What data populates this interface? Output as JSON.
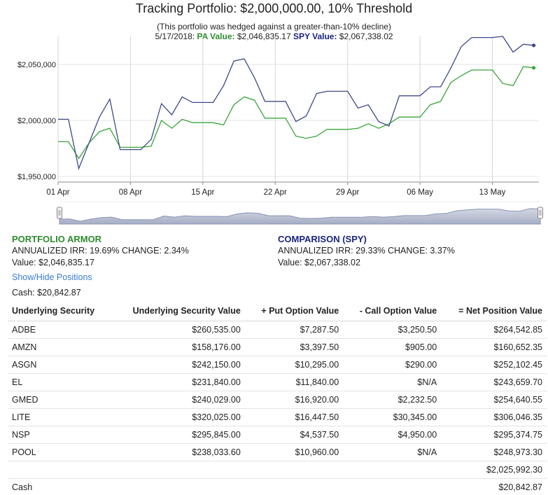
{
  "header": {
    "title": "Tracking Portfolio: $2,000,000.00, 10% Threshold",
    "subtitle": "(This portfolio was hedged against a greater-than-10% decline)",
    "date": "5/17/2018:",
    "pa_label": "PA Value:",
    "pa_value": "$2,046,835.17",
    "spy_label": "SPY Value:",
    "spy_value": "$2,067,338.02"
  },
  "colors": {
    "portfolio": "#3aa53a",
    "spy": "#3f4a8a",
    "portfolio_text": "#2e8b2e",
    "spy_text": "#1a237e",
    "link": "#3a7bd5"
  },
  "chart_data": {
    "type": "line",
    "title": "Tracking Portfolio: $2,000,000.00, 10% Threshold",
    "xlabel": "",
    "ylabel": "",
    "ylim": [
      1945000,
      2075000
    ],
    "y_ticks": [
      1950000,
      2000000,
      2050000
    ],
    "y_tick_labels": [
      "$1,950,000",
      "$2,000,000",
      "$2,050,000"
    ],
    "x_ticks": [
      0,
      7,
      14,
      21,
      28,
      35,
      42
    ],
    "x_tick_labels": [
      "01 Apr",
      "08 Apr",
      "15 Apr",
      "22 Apr",
      "29 Apr",
      "06 May",
      "13 May"
    ],
    "x_range": [
      0,
      46.5
    ],
    "series": [
      {
        "name": "PA Value",
        "x": [
          0,
          1,
          2,
          3,
          4,
          5,
          6,
          7,
          8,
          9,
          10,
          11,
          12,
          13,
          14,
          15,
          16,
          17,
          18,
          19,
          20,
          21,
          22,
          23,
          24,
          25,
          26,
          27,
          28,
          29,
          30,
          31,
          32,
          33,
          34,
          35,
          36,
          37,
          38,
          39,
          40,
          41,
          42,
          43,
          44,
          45,
          46
        ],
        "values": [
          1981000,
          1981000,
          1966000,
          1980000,
          1990000,
          1993000,
          1976000,
          1976000,
          1976000,
          1977000,
          2000000,
          1993000,
          2001000,
          1998000,
          1998000,
          1998000,
          1996000,
          2014000,
          2021000,
          2018000,
          2002000,
          2002000,
          2002000,
          1986000,
          1984000,
          1986000,
          1992000,
          1992000,
          1992000,
          1993000,
          1997000,
          1993000,
          1997000,
          2003000,
          2003000,
          2003000,
          2014000,
          2017000,
          2034000,
          2040000,
          2045000,
          2045000,
          2045000,
          2033000,
          2031000,
          2048000,
          2047000
        ]
      },
      {
        "name": "SPY Value",
        "x": [
          0,
          1,
          2,
          3,
          4,
          5,
          6,
          7,
          8,
          9,
          10,
          11,
          12,
          13,
          14,
          15,
          16,
          17,
          18,
          19,
          20,
          21,
          22,
          23,
          24,
          25,
          26,
          27,
          28,
          29,
          30,
          31,
          32,
          33,
          34,
          35,
          36,
          37,
          38,
          39,
          40,
          41,
          42,
          43,
          44,
          45,
          46
        ],
        "values": [
          2001000,
          2001000,
          1957000,
          1980000,
          2003000,
          2019000,
          1974000,
          1974000,
          1974000,
          1983000,
          2015000,
          2005000,
          2021000,
          2016000,
          2016000,
          2016000,
          2031000,
          2053000,
          2055000,
          2038000,
          2017000,
          2017000,
          2017000,
          1999000,
          2004000,
          2024000,
          2026000,
          2026000,
          2026000,
          2011000,
          2014000,
          1999000,
          1995000,
          2022000,
          2022000,
          2022000,
          2030000,
          2030000,
          2047000,
          2066000,
          2074000,
          2074000,
          2074000,
          2075000,
          2061000,
          2068000,
          2067000
        ]
      }
    ],
    "navigator": {
      "x_range": [
        0,
        46.5
      ],
      "values": [
        1981000,
        1981000,
        1966000,
        1980000,
        1990000,
        1993000,
        1976000,
        1976000,
        1976000,
        1977000,
        2000000,
        1993000,
        2001000,
        1998000,
        1998000,
        1998000,
        1996000,
        2014000,
        2021000,
        2018000,
        2002000,
        2002000,
        2002000,
        1986000,
        1984000,
        1986000,
        1992000,
        1992000,
        1992000,
        1993000,
        1997000,
        1993000,
        1997000,
        2003000,
        2003000,
        2003000,
        2014000,
        2017000,
        2034000,
        2040000,
        2045000,
        2045000,
        2045000,
        2033000,
        2031000,
        2048000,
        2047000
      ]
    }
  },
  "portfolio": {
    "heading": "PORTFOLIO ARMOR",
    "irr": "ANNUALIZED IRR: 19.69% CHANGE: 2.34%",
    "value": "Value: $2,046,835.17"
  },
  "comparison": {
    "heading": "COMPARISON (SPY)",
    "irr": "ANNUALIZED IRR: 29.33% CHANGE: 3.37%",
    "value": "Value: $2,067,338.02"
  },
  "toggle_label": "Show/Hide Positions",
  "cash_summary": "Cash: $20,842.87",
  "table": {
    "headers": [
      "Underlying Security",
      "Underlying Security Value",
      "+ Put Option Value",
      "- Call Option Value",
      "= Net Position Value"
    ],
    "rows": [
      [
        "ADBE",
        "$260,535.00",
        "$7,287.50",
        "$3,250.50",
        "$264,542.85"
      ],
      [
        "AMZN",
        "$158,176.00",
        "$3,397.50",
        "$905.00",
        "$160,652.35"
      ],
      [
        "ASGN",
        "$242,150.00",
        "$10,295.00",
        "$290.00",
        "$252,102.45"
      ],
      [
        "EL",
        "$231,840.00",
        "$11,840.00",
        "$N/A",
        "$243,659.70"
      ],
      [
        "GMED",
        "$240,029.00",
        "$16,920.00",
        "$2,232.50",
        "$254,640.55"
      ],
      [
        "LITE",
        "$320,025.00",
        "$16,447.50",
        "$30,345.00",
        "$306,046.35"
      ],
      [
        "NSP",
        "$295,845.00",
        "$4,537.50",
        "$4,950.00",
        "$295,374.75"
      ],
      [
        "POOL",
        "$238,033.60",
        "$10,960.00",
        "$N/A",
        "$248,973.30"
      ],
      [
        "",
        "",
        "",
        "",
        "$2,025,992.30"
      ],
      [
        "Cash",
        "",
        "",
        "",
        "$20,842.87"
      ]
    ]
  }
}
